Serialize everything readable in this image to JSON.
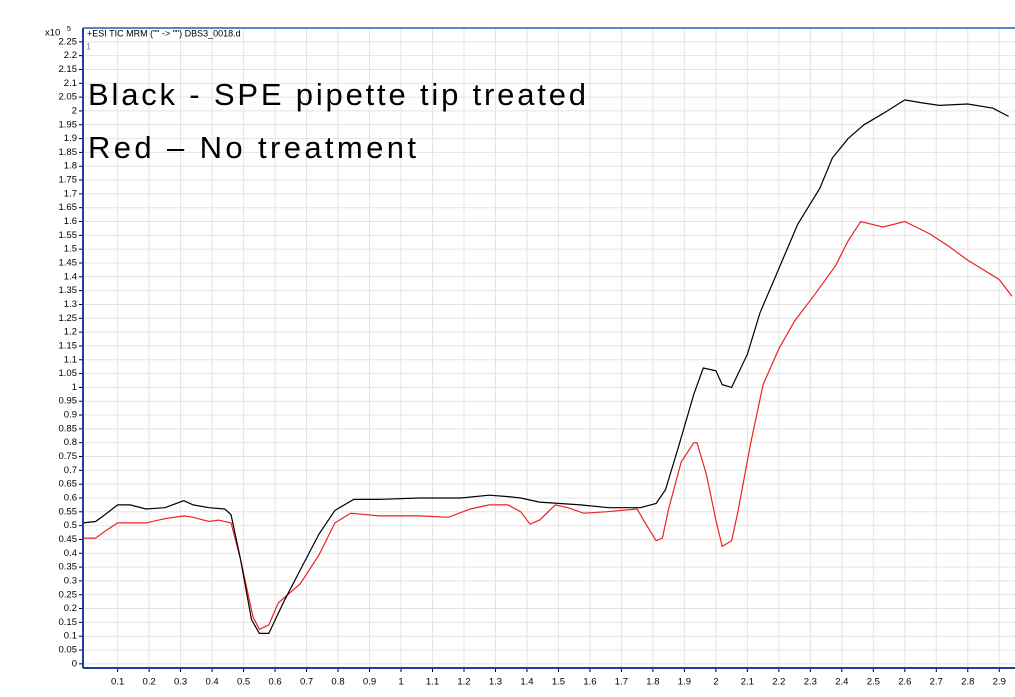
{
  "chart_data": {
    "type": "line",
    "title": "+ESI TIC MRM (\"\" -> \"\") DBS3_0018.d",
    "y_multiplier": "x10",
    "y_multiplier_exp": "5",
    "panel_label": "1",
    "annotations": [
      "Black - SPE pipette tip treated",
      "Red – No treatment"
    ],
    "xlim": [
      -0.01,
      2.95
    ],
    "ylim": [
      -0.015,
      2.3
    ],
    "xticks": [
      0.1,
      0.2,
      0.3,
      0.4,
      0.5,
      0.6,
      0.7,
      0.8,
      0.9,
      1,
      1.1,
      1.2,
      1.3,
      1.4,
      1.5,
      1.6,
      1.7,
      1.8,
      1.9,
      2,
      2.1,
      2.2,
      2.3,
      2.4,
      2.5,
      2.6,
      2.7,
      2.8,
      2.9
    ],
    "yticks": [
      0,
      0.05,
      0.1,
      0.15,
      0.2,
      0.25,
      0.3,
      0.35,
      0.4,
      0.45,
      0.5,
      0.55,
      0.6,
      0.65,
      0.7,
      0.75,
      0.8,
      0.85,
      0.9,
      0.95,
      1,
      1.05,
      1.1,
      1.15,
      1.2,
      1.25,
      1.3,
      1.35,
      1.4,
      1.45,
      1.5,
      1.55,
      1.6,
      1.65,
      1.7,
      1.75,
      1.8,
      1.85,
      1.9,
      1.95,
      2,
      2.05,
      2.1,
      2.15,
      2.2,
      2.25
    ],
    "grid": true,
    "series": [
      {
        "color": "#000000",
        "x": [
          -0.01,
          0.03,
          0.06,
          0.1,
          0.14,
          0.19,
          0.25,
          0.31,
          0.34,
          0.39,
          0.44,
          0.46,
          0.49,
          0.525,
          0.55,
          0.58,
          0.63,
          0.68,
          0.74,
          0.79,
          0.85,
          0.93,
          1.06,
          1.19,
          1.28,
          1.34,
          1.38,
          1.44,
          1.57,
          1.66,
          1.76,
          1.81,
          1.84,
          1.88,
          1.93,
          1.96,
          2.0,
          2.02,
          2.05,
          2.1,
          2.14,
          2.2,
          2.26,
          2.33,
          2.37,
          2.42,
          2.47,
          2.53,
          2.6,
          2.65,
          2.71,
          2.8,
          2.88,
          2.93
        ],
        "values": [
          0.51,
          0.515,
          0.54,
          0.575,
          0.575,
          0.56,
          0.565,
          0.59,
          0.575,
          0.565,
          0.56,
          0.54,
          0.38,
          0.16,
          0.11,
          0.11,
          0.23,
          0.34,
          0.47,
          0.555,
          0.595,
          0.595,
          0.6,
          0.6,
          0.61,
          0.605,
          0.6,
          0.585,
          0.575,
          0.565,
          0.565,
          0.58,
          0.63,
          0.78,
          0.975,
          1.07,
          1.06,
          1.01,
          1.0,
          1.12,
          1.27,
          1.43,
          1.59,
          1.72,
          1.83,
          1.9,
          1.95,
          1.99,
          2.04,
          2.03,
          2.02,
          2.025,
          2.01,
          1.98
        ]
      },
      {
        "color": "#ee2222",
        "x": [
          -0.01,
          0.03,
          0.06,
          0.1,
          0.14,
          0.19,
          0.25,
          0.31,
          0.34,
          0.39,
          0.42,
          0.46,
          0.49,
          0.53,
          0.55,
          0.58,
          0.61,
          0.68,
          0.74,
          0.79,
          0.84,
          0.93,
          1.06,
          1.15,
          1.22,
          1.28,
          1.34,
          1.38,
          1.41,
          1.44,
          1.49,
          1.53,
          1.58,
          1.65,
          1.75,
          1.77,
          1.81,
          1.83,
          1.85,
          1.89,
          1.93,
          1.94,
          1.97,
          2.0,
          2.02,
          2.05,
          2.07,
          2.11,
          2.15,
          2.2,
          2.25,
          2.31,
          2.38,
          2.42,
          2.46,
          2.53,
          2.6,
          2.68,
          2.74,
          2.8,
          2.9,
          2.94
        ],
        "values": [
          0.455,
          0.455,
          0.48,
          0.51,
          0.51,
          0.51,
          0.525,
          0.535,
          0.53,
          0.515,
          0.52,
          0.51,
          0.38,
          0.17,
          0.125,
          0.14,
          0.22,
          0.29,
          0.395,
          0.51,
          0.545,
          0.535,
          0.535,
          0.53,
          0.56,
          0.575,
          0.575,
          0.55,
          0.505,
          0.52,
          0.575,
          0.565,
          0.545,
          0.55,
          0.56,
          0.52,
          0.445,
          0.455,
          0.56,
          0.73,
          0.8,
          0.8,
          0.685,
          0.52,
          0.425,
          0.445,
          0.55,
          0.795,
          1.01,
          1.14,
          1.24,
          1.33,
          1.44,
          1.53,
          1.6,
          1.58,
          1.6,
          1.555,
          1.51,
          1.46,
          1.39,
          1.33
        ]
      }
    ]
  }
}
